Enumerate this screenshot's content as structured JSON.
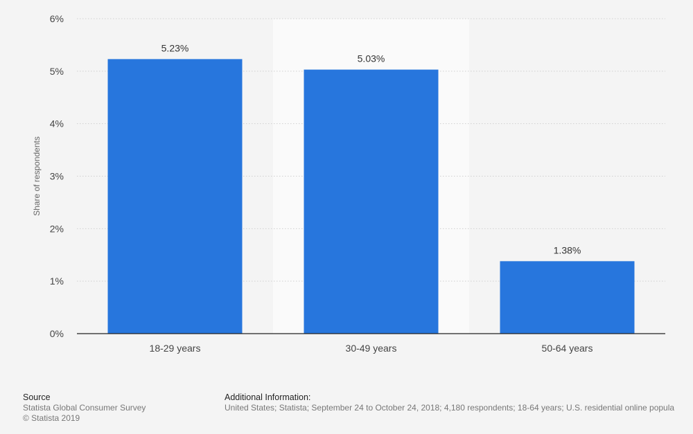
{
  "chart_data": {
    "type": "bar",
    "categories": [
      "18-29 years",
      "30-49 years",
      "50-64 years"
    ],
    "values": [
      5.23,
      5.03,
      1.38
    ],
    "data_labels": [
      "5.23%",
      "5.03%",
      "1.38%"
    ],
    "title": "",
    "xlabel": "",
    "ylabel": "Share of respondents",
    "ylim": [
      0,
      6
    ],
    "yticks": [
      0,
      1,
      2,
      3,
      4,
      5,
      6
    ],
    "ytick_labels": [
      "0%",
      "1%",
      "2%",
      "3%",
      "4%",
      "5%",
      "6%"
    ],
    "grid": true,
    "legend": false,
    "highlighted_category": "30-49 years",
    "colors": {
      "bar": "#2776dd",
      "highlight_band": "#fafafa",
      "gridline": "#cfcfcf",
      "axis": "#222222",
      "background": "#f4f4f4"
    }
  },
  "footer": {
    "source_heading": "Source",
    "source_lines": [
      "Statista Global Consumer Survey",
      "© Statista 2019"
    ],
    "additional_heading": "Additional Information:",
    "additional_text": "United States; Statista; September 24 to October 24, 2018; 4,180 respondents; 18-64 years; U.S. residential online popula"
  }
}
